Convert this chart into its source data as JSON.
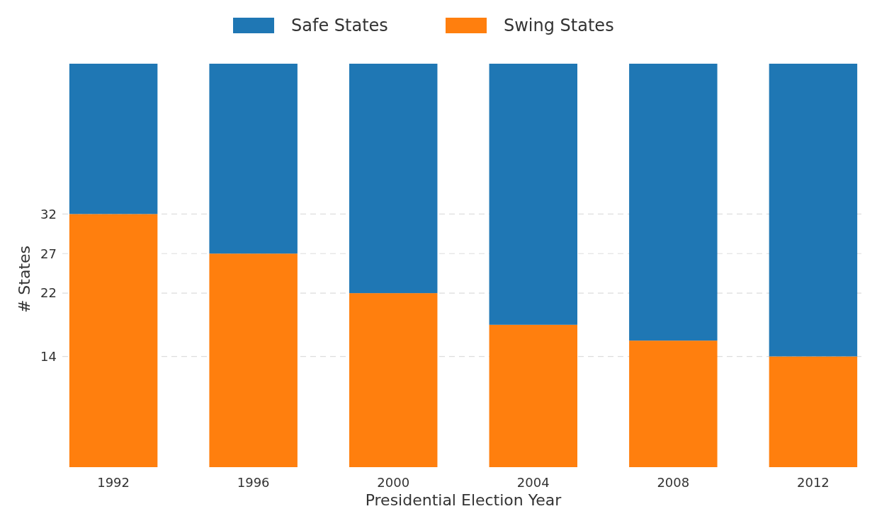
{
  "chart_data": {
    "type": "bar",
    "stacked": true,
    "xlabel": "Presidential Election Year",
    "ylabel": "# States",
    "categories": [
      "1992",
      "1996",
      "2000",
      "2004",
      "2008",
      "2012"
    ],
    "series": [
      {
        "name": "Swing States",
        "color": "#ff7f0e",
        "values": [
          32,
          27,
          22,
          18,
          16,
          14
        ]
      },
      {
        "name": "Safe States",
        "color": "#1f77b4",
        "values": [
          19,
          24,
          29,
          33,
          35,
          37
        ]
      }
    ],
    "ylim": [
      0,
      51
    ],
    "yticks": [
      14,
      22,
      27,
      32
    ],
    "grid": "y",
    "line_style": "dashed",
    "legend": "top"
  }
}
